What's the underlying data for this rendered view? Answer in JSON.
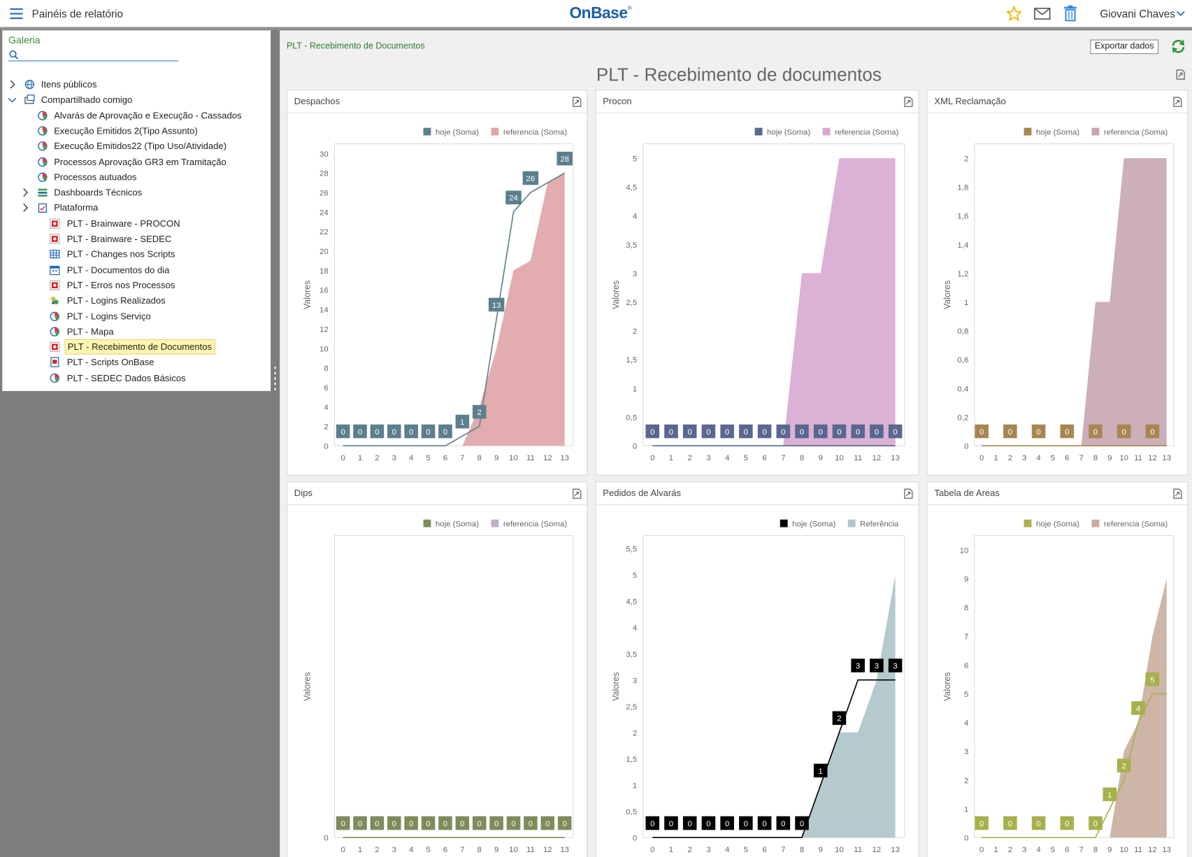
{
  "header": {
    "title": "Painéis de relatório",
    "logo": "OnBase",
    "logo_mark": "®",
    "user": "Giovani Chaves"
  },
  "sidebar": {
    "title": "Galeria",
    "tree": [
      "Itens públicos",
      "Compartilhado comigo",
      "Alvarás de Aprovação e Execução - Cassados",
      "Execução Emitidos 2(Tipo Assunto)",
      "Execução Emitidos22 (Tipo Uso/Atividade)",
      "Processos Aprovação GR3 em Tramitação",
      "Processos autuados",
      "Dashboards Técnicos",
      "Plataforma",
      "PLT - Brainware - PROCON",
      "PLT - Brainware - SEDEC",
      "PLT - Changes nos Scripts",
      "PLT - Documentos do dia",
      "PLT - Erros nos Processos",
      "PLT - Logins Realizados",
      "PLT - Logins Serviço",
      "PLT - Mapa",
      "PLT - Recebimento de Documentos",
      "PLT - Scripts OnBase",
      "PLT - SEDEC Dados Básicos"
    ]
  },
  "dashboard": {
    "breadcrumb": "PLT - Recebimento de Documentos",
    "export": "Exportar dados",
    "title": "PLT - Recebimento de documentos"
  },
  "chart_data": [
    {
      "type": "line",
      "title": "Despachos",
      "y_label": "Valores",
      "legend": "top-right",
      "grid": false,
      "x": [
        0,
        1,
        2,
        3,
        4,
        5,
        6,
        7,
        8,
        9,
        10,
        11,
        12,
        13
      ],
      "xlim": [
        -0.5,
        13.5
      ],
      "xticks": [
        0,
        1,
        2,
        3,
        4,
        5,
        6,
        7,
        8,
        9,
        10,
        11,
        12,
        13
      ],
      "ylim": [
        0,
        31
      ],
      "yticks": [
        0,
        2,
        4,
        6,
        8,
        10,
        12,
        14,
        16,
        18,
        20,
        22,
        24,
        26,
        28,
        30
      ],
      "series": [
        {
          "name": "hoje (Soma)",
          "type": "line",
          "color": "#5b7f8c",
          "values": [
            0,
            0,
            0,
            0,
            0,
            0,
            0,
            1,
            2,
            13,
            24,
            26,
            27,
            28
          ],
          "value_labels": [
            "0",
            "0",
            "0",
            "0",
            "0",
            "0",
            "0",
            "1",
            "2",
            "13",
            "24",
            "26",
            null,
            "28"
          ]
        },
        {
          "name": "referencia (Soma)",
          "type": "area",
          "color": "#e0a3a6",
          "values": [
            0,
            0,
            0,
            0,
            0,
            0,
            0,
            0,
            4,
            10,
            18,
            19,
            27,
            28
          ]
        }
      ]
    },
    {
      "type": "line",
      "title": "Procon",
      "y_label": "Valores",
      "legend": "top-right",
      "grid": false,
      "x": [
        0,
        1,
        2,
        3,
        4,
        5,
        6,
        7,
        8,
        9,
        10,
        11,
        12,
        13
      ],
      "xlim": [
        -0.5,
        13.5
      ],
      "xticks": [
        0,
        1,
        2,
        3,
        4,
        5,
        6,
        7,
        8,
        9,
        10,
        11,
        12,
        13
      ],
      "ylim": [
        0,
        5.25
      ],
      "yticks": [
        0,
        {
          "value": 0.5,
          "label": "0,5"
        },
        1,
        {
          "value": 1.5,
          "label": "1,5"
        },
        2,
        {
          "value": 2.5,
          "label": "2,5"
        },
        3,
        {
          "value": 3.5,
          "label": "3,5"
        },
        4,
        {
          "value": 4.5,
          "label": "4,5"
        },
        5
      ],
      "series": [
        {
          "name": "hoje (Soma)",
          "type": "line",
          "color": "#5a6790",
          "values": [
            0,
            0,
            0,
            0,
            0,
            0,
            0,
            0,
            0,
            0,
            0,
            0,
            0,
            0
          ]
        },
        {
          "name": "referencia (Soma)",
          "type": "area",
          "color": "#d7a8d0",
          "values": [
            0,
            0,
            0,
            0,
            0,
            0,
            0,
            0,
            3,
            3,
            5,
            5,
            5,
            5
          ]
        }
      ]
    },
    {
      "type": "line",
      "title": "XML Reclamação",
      "y_label": "Valores",
      "legend": "top-right",
      "grid": false,
      "x": [
        0,
        1,
        2,
        3,
        4,
        5,
        6,
        7,
        8,
        9,
        10,
        11,
        12,
        13
      ],
      "xlim": [
        -0.5,
        13.5
      ],
      "xticks": [
        0,
        1,
        2,
        3,
        4,
        5,
        6,
        7,
        8,
        9,
        10,
        11,
        12,
        13
      ],
      "ylim": [
        0,
        2.1
      ],
      "yticks": [
        0,
        {
          "value": 0.2,
          "label": "0,2"
        },
        {
          "value": 0.4,
          "label": "0,4"
        },
        {
          "value": 0.6,
          "label": "0,6"
        },
        {
          "value": 0.8,
          "label": "0,8"
        },
        1,
        {
          "value": 1.2,
          "label": "1,2"
        },
        {
          "value": 1.4,
          "label": "1,4"
        },
        {
          "value": 1.6,
          "label": "1,6"
        },
        {
          "value": 1.8,
          "label": "1,8"
        },
        2
      ],
      "series": [
        {
          "name": "hoje (Soma)",
          "type": "line",
          "color": "#a88651",
          "values": [
            0,
            0,
            0,
            0,
            0,
            0,
            0,
            0,
            0,
            0,
            0,
            0,
            0,
            0
          ],
          "value_labels": [
            "0",
            null,
            "0",
            null,
            "0",
            null,
            "0",
            null,
            "0",
            null,
            "0",
            null,
            "0",
            null
          ]
        },
        {
          "name": "referencia (Soma)",
          "type": "area",
          "color": "#c6a6b0",
          "values": [
            0,
            0,
            0,
            0,
            0,
            0,
            0,
            0,
            1,
            1,
            2,
            2,
            2,
            2
          ]
        }
      ]
    },
    {
      "type": "line",
      "title": "Dips",
      "y_label": "Valores",
      "legend": "top-right",
      "grid": false,
      "x": [
        0,
        1,
        2,
        3,
        4,
        5,
        6,
        7,
        8,
        9,
        10,
        11,
        12,
        13
      ],
      "xlim": [
        -0.5,
        13.5
      ],
      "xticks": [
        0,
        1,
        2,
        3,
        4,
        5,
        6,
        7,
        8,
        9,
        10,
        11,
        12,
        13
      ],
      "ylim": [
        0,
        1
      ],
      "yticks": [
        0
      ],
      "series": [
        {
          "name": "hoje (Soma)",
          "type": "line",
          "color": "#7d8c5a",
          "values": [
            0,
            0,
            0,
            0,
            0,
            0,
            0,
            0,
            0,
            0,
            0,
            0,
            0,
            0
          ]
        },
        {
          "name": "referencia (Soma)",
          "type": "area",
          "color": "#c0b0c8",
          "values": [
            0,
            0,
            0,
            0,
            0,
            0,
            0,
            0,
            0,
            0,
            0,
            0,
            0,
            0
          ]
        }
      ]
    },
    {
      "type": "line",
      "title": "Pedidos de Alvarás",
      "y_label": "Valores",
      "legend": "top-right",
      "grid": false,
      "x": [
        0,
        1,
        2,
        3,
        4,
        5,
        6,
        7,
        8,
        9,
        10,
        11,
        12,
        13
      ],
      "xlim": [
        -0.5,
        13.5
      ],
      "xticks": [
        0,
        1,
        2,
        3,
        4,
        5,
        6,
        7,
        8,
        9,
        10,
        11,
        12,
        13
      ],
      "ylim": [
        0,
        5.75
      ],
      "yticks": [
        0,
        {
          "value": 0.5,
          "label": "0,5"
        },
        1,
        {
          "value": 1.5,
          "label": "1,5"
        },
        2,
        {
          "value": 2.5,
          "label": "2,5"
        },
        3,
        {
          "value": 3.5,
          "label": "3,5"
        },
        4,
        {
          "value": 4.5,
          "label": "4,5"
        },
        5,
        {
          "value": 5.5,
          "label": "5,5"
        }
      ],
      "series": [
        {
          "name": "hoje (Soma)",
          "type": "line",
          "color": "#000000",
          "values": [
            0,
            0,
            0,
            0,
            0,
            0,
            0,
            0,
            0,
            1,
            2,
            3,
            3,
            3
          ]
        },
        {
          "name": "Referência",
          "type": "area",
          "color": "#adc4ca",
          "values": [
            0,
            0,
            0,
            0,
            0,
            0,
            0,
            0,
            0,
            1,
            2,
            2,
            3,
            5
          ]
        }
      ]
    },
    {
      "type": "line",
      "title": "Tabela de Areas",
      "y_label": "Valores",
      "legend": "top-right",
      "grid": false,
      "x": [
        0,
        1,
        2,
        3,
        4,
        5,
        6,
        7,
        8,
        9,
        10,
        11,
        12,
        13
      ],
      "xlim": [
        -0.5,
        13.5
      ],
      "xticks": [
        0,
        1,
        2,
        3,
        4,
        5,
        6,
        7,
        8,
        9,
        10,
        11,
        12,
        13
      ],
      "ylim": [
        0,
        10.5
      ],
      "yticks": [
        0,
        1,
        2,
        3,
        4,
        5,
        6,
        7,
        8,
        9,
        10
      ],
      "series": [
        {
          "name": "hoje (Soma)",
          "type": "line",
          "color": "#a7b04c",
          "values": [
            0,
            0,
            0,
            0,
            0,
            0,
            0,
            0,
            0,
            1,
            2,
            4,
            5,
            5
          ],
          "value_labels": [
            "0",
            null,
            "0",
            null,
            "0",
            null,
            "0",
            null,
            "0",
            "1",
            "2",
            "4",
            "5",
            null
          ]
        },
        {
          "name": "referencia (Soma)",
          "type": "area",
          "color": "#c8ad9e",
          "values": [
            0,
            0,
            0,
            0,
            0,
            0,
            0,
            0,
            0,
            0,
            3,
            4,
            7,
            9
          ]
        }
      ]
    }
  ]
}
